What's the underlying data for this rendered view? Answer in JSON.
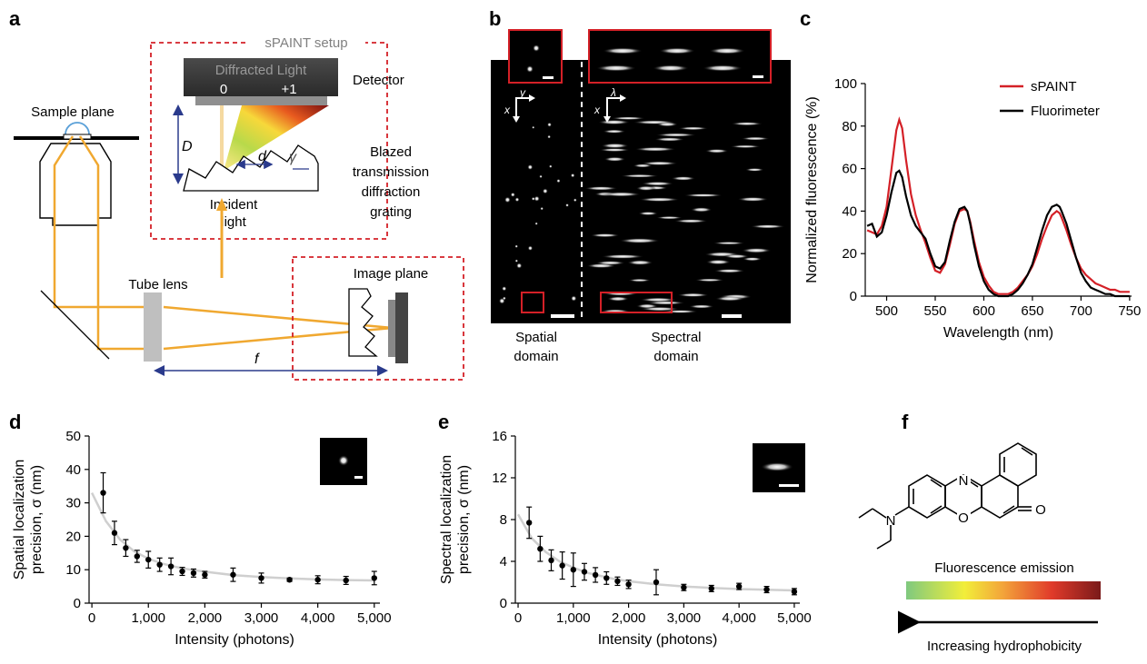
{
  "panel_labels": {
    "a": "a",
    "b": "b",
    "c": "c",
    "d": "d",
    "e": "e",
    "f": "f"
  },
  "panel_a": {
    "setup_title": "sPAINT setup",
    "diffracted_light": "Diffracted Light",
    "order_zero": "0",
    "order_plus_one": "+1",
    "detector": "Detector",
    "sample_plane": "Sample plane",
    "distance_D": "D",
    "spacing_d": "d",
    "angle_gamma": "γ",
    "incident_line1": "Incident",
    "incident_line2": "light",
    "grating_line1": "Blazed",
    "grating_line2": "transmission",
    "grating_line3": "diffraction",
    "grating_line4": "grating",
    "tube_lens": "Tube lens",
    "image_plane": "Image plane",
    "focal_f": "f"
  },
  "panel_b": {
    "axis_x_spatial": "x",
    "axis_y_spatial": "y",
    "axis_x_spectral": "x",
    "axis_lambda": "λ",
    "spatial_line1": "Spatial",
    "spatial_line2": "domain",
    "spectral_line1": "Spectral",
    "spectral_line2": "domain"
  },
  "panel_f": {
    "emission_label": "Fluorescence emission",
    "hydrophobicity_label": "Increasing hydrophobicity",
    "atom_N1": "N",
    "atom_N2": "N",
    "atom_O_ring": "O",
    "atom_O_ketone": "O"
  },
  "colors": {
    "red": "#d42027",
    "orange": "#f0a830",
    "navy": "#2a3a8c"
  },
  "chart_data": [
    {
      "id": "c",
      "type": "line",
      "xlabel": "Wavelength (nm)",
      "ylabel": "Normalized fluorescence (%)",
      "xlim": [
        478,
        752
      ],
      "ylim": [
        0,
        100
      ],
      "xticks": [
        "500",
        "550",
        "600",
        "650",
        "700",
        "750"
      ],
      "yticks": [
        "0",
        "20",
        "40",
        "60",
        "80",
        "100"
      ],
      "legend_position": "top-right",
      "series": [
        {
          "name": "sPAINT",
          "color": "#d42027",
          "x": [
            480,
            485,
            490,
            495,
            500,
            505,
            510,
            513,
            516,
            520,
            525,
            530,
            535,
            540,
            545,
            550,
            555,
            560,
            565,
            570,
            575,
            580,
            583,
            586,
            590,
            595,
            600,
            605,
            610,
            615,
            620,
            625,
            630,
            635,
            640,
            645,
            650,
            655,
            660,
            665,
            670,
            675,
            678,
            680,
            685,
            690,
            695,
            700,
            705,
            710,
            715,
            720,
            725,
            730,
            735,
            740,
            745,
            750
          ],
          "y": [
            31,
            30,
            29,
            33,
            42,
            60,
            78,
            83,
            79,
            64,
            48,
            38,
            31,
            25,
            18,
            12,
            11,
            15,
            24,
            34,
            40,
            41,
            40,
            35,
            26,
            16,
            9,
            5,
            2,
            1,
            1,
            1,
            2,
            4,
            7,
            10,
            14,
            20,
            27,
            33,
            38,
            40,
            39,
            37,
            31,
            24,
            18,
            13,
            10,
            8,
            6,
            5,
            4,
            3,
            3,
            2,
            2,
            2
          ]
        },
        {
          "name": "Fluorimeter",
          "color": "#000000",
          "x": [
            480,
            485,
            490,
            495,
            500,
            505,
            510,
            513,
            516,
            520,
            525,
            530,
            535,
            540,
            545,
            550,
            555,
            560,
            565,
            570,
            575,
            580,
            583,
            586,
            590,
            595,
            600,
            605,
            610,
            615,
            620,
            625,
            630,
            635,
            640,
            645,
            650,
            655,
            660,
            665,
            670,
            675,
            678,
            680,
            685,
            690,
            695,
            700,
            705,
            710,
            715,
            720,
            725,
            730,
            735,
            740,
            745,
            750
          ],
          "y": [
            33,
            34,
            28,
            30,
            38,
            49,
            58,
            59,
            56,
            47,
            38,
            33,
            30,
            27,
            20,
            14,
            13,
            16,
            26,
            35,
            41,
            42,
            40,
            34,
            24,
            14,
            7,
            3,
            1,
            0,
            0,
            0,
            1,
            3,
            6,
            10,
            15,
            23,
            31,
            38,
            42,
            43,
            42,
            40,
            34,
            26,
            18,
            11,
            7,
            4,
            3,
            2,
            1,
            1,
            0,
            0,
            0,
            0
          ]
        }
      ]
    },
    {
      "id": "d",
      "type": "scatter",
      "xlabel": "Intensity (photons)",
      "ylabel_line1": "Spatial localization",
      "ylabel_line2": "precision, σ (nm)",
      "xlim": [
        -50,
        5100
      ],
      "ylim": [
        0,
        50
      ],
      "xticks": [
        "0",
        "1,000",
        "2,000",
        "3,000",
        "4,000",
        "5,000"
      ],
      "yticks": [
        "0",
        "10",
        "20",
        "30",
        "40",
        "50"
      ],
      "x": [
        200,
        400,
        600,
        800,
        1000,
        1200,
        1400,
        1600,
        1800,
        2000,
        2500,
        3000,
        3500,
        4000,
        4500,
        5000
      ],
      "y": [
        33,
        21,
        16.5,
        14,
        13,
        11.5,
        11,
        9.5,
        9,
        8.5,
        8.5,
        7.5,
        7,
        7,
        6.8,
        7.5
      ],
      "yerr": [
        6,
        3.5,
        2.5,
        1.8,
        2.5,
        2,
        2.5,
        1.2,
        1.2,
        1,
        2,
        1.5,
        0.5,
        1.2,
        1.2,
        2
      ],
      "fit": {
        "x": [
          0,
          250,
          500,
          750,
          1000,
          1250,
          1500,
          1750,
          2000,
          2500,
          3000,
          3500,
          4000,
          4500,
          5000
        ],
        "y": [
          33,
          24.5,
          19,
          15.5,
          13.3,
          11.8,
          10.8,
          10,
          9.4,
          8.4,
          7.8,
          7.4,
          7.1,
          6.9,
          6.8
        ]
      }
    },
    {
      "id": "e",
      "type": "scatter",
      "xlabel": "Intensity (photons)",
      "ylabel_line1": "Spectral localization",
      "ylabel_line2": "precision, σ (nm)",
      "xlim": [
        -50,
        5100
      ],
      "ylim": [
        0,
        16
      ],
      "xticks": [
        "0",
        "1,000",
        "2,000",
        "3,000",
        "4,000",
        "5,000"
      ],
      "yticks": [
        "0",
        "4",
        "8",
        "12",
        "16"
      ],
      "x": [
        200,
        400,
        600,
        800,
        1000,
        1200,
        1400,
        1600,
        1800,
        2000,
        2500,
        3000,
        3500,
        4000,
        4500,
        5000
      ],
      "y": [
        7.7,
        5.2,
        4.1,
        3.6,
        3.2,
        3.0,
        2.7,
        2.4,
        2.1,
        1.8,
        2.0,
        1.5,
        1.4,
        1.6,
        1.3,
        1.1
      ],
      "yerr": [
        1.5,
        1.2,
        1.0,
        1.3,
        1.6,
        0.8,
        0.7,
        0.6,
        0.4,
        0.4,
        1.2,
        0.3,
        0.3,
        0.3,
        0.3,
        0.3
      ],
      "fit": {
        "x": [
          0,
          250,
          500,
          750,
          1000,
          1250,
          1500,
          1750,
          2000,
          2500,
          3000,
          3500,
          4000,
          4500,
          5000
        ],
        "y": [
          8.5,
          6.2,
          4.9,
          4.0,
          3.4,
          2.9,
          2.6,
          2.3,
          2.1,
          1.8,
          1.6,
          1.45,
          1.35,
          1.28,
          1.22
        ]
      }
    }
  ]
}
